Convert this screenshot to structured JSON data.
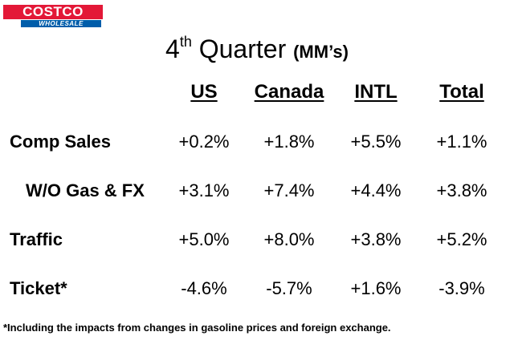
{
  "logo": {
    "brand": "COSTCO",
    "sub": "WHOLESALE",
    "colors": {
      "red": "#e31837",
      "blue": "#005daa"
    }
  },
  "title": {
    "number": "4",
    "ordinal": "th",
    "text": "Quarter",
    "unit": "(MM’s)"
  },
  "columns": [
    "US",
    "Canada",
    "INTL",
    "Total"
  ],
  "rows": [
    {
      "label": "Comp Sales",
      "values": [
        "+0.2%",
        "+1.8%",
        "+5.5%",
        "+1.1%"
      ]
    },
    {
      "label": "W/O Gas & FX",
      "values": [
        "+3.1%",
        "+7.4%",
        "+4.4%",
        "+3.8%"
      ]
    },
    {
      "label": "Traffic",
      "values": [
        "+5.0%",
        "+8.0%",
        "+3.8%",
        "+5.2%"
      ]
    },
    {
      "label": "Ticket*",
      "values": [
        "-4.6%",
        "-5.7%",
        "+1.6%",
        "-3.9%"
      ]
    }
  ],
  "footnote": "*Including the impacts from changes in gasoline prices and foreign exchange."
}
